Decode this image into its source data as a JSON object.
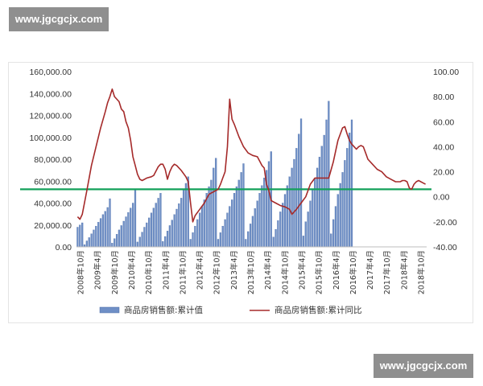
{
  "watermark": {
    "top_text": "www.jgcgcjx.com",
    "bottom_text": "www.jgcgcjx.com"
  },
  "chart_data": {
    "type": "bar+line",
    "title": "",
    "left_axis": {
      "ticks": [
        "160,000.00",
        "140,000.00",
        "120,000.00",
        "100,000.00",
        "80,000.00",
        "60,000.00",
        "40,000.00",
        "20,000.00",
        "0.00"
      ],
      "range": [
        0,
        160000
      ]
    },
    "right_axis": {
      "ticks": [
        "100.00",
        "80.00",
        "60.00",
        "40.00",
        "20.00",
        "0.00",
        "-20.00",
        "-40.00"
      ],
      "range": [
        -40,
        100
      ]
    },
    "x_ticks": [
      "2008年10月",
      "2009年4月",
      "2009年10月",
      "2010年4月",
      "2010年10月",
      "2011年4月",
      "2011年10月",
      "2012年4月",
      "2012年10月",
      "2013年4月",
      "2013年10月",
      "2014年4月",
      "2014年10月",
      "2015年4月",
      "2015年10月",
      "2016年4月",
      "2016年10月",
      "2017年4月",
      "2017年10月",
      "2018年4月",
      "2018年10月"
    ],
    "legend": {
      "placement": "bottom",
      "bar_label": "商品房销售额:累计值",
      "line_label": "商品房销售额:累计同比"
    },
    "reference_line": {
      "axis": "right",
      "value": 6,
      "color": "#13a05a"
    },
    "colors": {
      "bar": "#6f8fc6",
      "bar_edge": "#4b6ea8",
      "line": "#a52a2a"
    },
    "series": [
      {
        "name": "商品房销售额:累计值",
        "axis": "left",
        "kind": "bar",
        "values": [
          18000,
          20000,
          22000,
          2000,
          5500,
          8500,
          12000,
          15500,
          19000,
          22500,
          26000,
          29500,
          32500,
          36000,
          44000,
          3500,
          7500,
          11500,
          15500,
          19500,
          23500,
          27500,
          31500,
          35500,
          40000,
          52000,
          4500,
          9000,
          13500,
          18000,
          22000,
          26500,
          31000,
          35500,
          40000,
          44500,
          49000,
          5000,
          9500,
          14500,
          19500,
          24500,
          29500,
          34500,
          39500,
          44500,
          52000,
          58000,
          64000,
          7000,
          13000,
          19000,
          25000,
          31000,
          37000,
          43000,
          49000,
          55000,
          61000,
          72000,
          81000,
          7000,
          13000,
          19000,
          25000,
          31000,
          37000,
          43000,
          49000,
          55000,
          61000,
          68000,
          76000,
          7000,
          14000,
          21000,
          28000,
          35000,
          42000,
          49000,
          56000,
          63000,
          70000,
          78000,
          87000,
          9000,
          16000,
          24000,
          32000,
          40000,
          48000,
          56000,
          64000,
          72000,
          80000,
          90000,
          103000,
          117000,
          10000,
          23000,
          32000,
          42000,
          52000,
          62000,
          72000,
          82000,
          92000,
          102000,
          116000,
          133000,
          12000,
          25000,
          37000,
          48000,
          58000,
          68000,
          79000,
          90000,
          104000,
          116000
        ]
      },
      {
        "name": "商品房销售额:累计同比",
        "axis": "right",
        "kind": "line",
        "points": [
          [
            0,
            -16
          ],
          [
            1,
            -18
          ],
          [
            2,
            -14
          ],
          [
            4,
            5
          ],
          [
            6,
            25
          ],
          [
            8,
            40
          ],
          [
            10,
            55
          ],
          [
            12,
            68
          ],
          [
            13,
            75
          ],
          [
            14,
            80
          ],
          [
            15,
            86
          ],
          [
            16,
            80
          ],
          [
            18,
            76
          ],
          [
            19,
            70
          ],
          [
            20,
            68
          ],
          [
            21,
            60
          ],
          [
            22,
            55
          ],
          [
            23,
            45
          ],
          [
            24,
            32
          ],
          [
            25,
            25
          ],
          [
            26,
            18
          ],
          [
            27,
            14
          ],
          [
            28,
            13
          ],
          [
            30,
            15
          ],
          [
            32,
            16
          ],
          [
            33,
            17
          ],
          [
            35,
            24
          ],
          [
            36,
            26
          ],
          [
            37,
            26
          ],
          [
            38,
            22
          ],
          [
            39,
            14
          ],
          [
            40,
            20
          ],
          [
            41,
            24
          ],
          [
            42,
            26
          ],
          [
            43,
            25
          ],
          [
            44,
            23
          ],
          [
            45,
            21
          ],
          [
            47,
            16
          ],
          [
            48,
            12
          ],
          [
            49,
            -5
          ],
          [
            50,
            -20
          ],
          [
            51,
            -15
          ],
          [
            53,
            -10
          ],
          [
            55,
            -5
          ],
          [
            57,
            2
          ],
          [
            59,
            4
          ],
          [
            61,
            6
          ],
          [
            62,
            10
          ],
          [
            63,
            15
          ],
          [
            64,
            20
          ],
          [
            65,
            40
          ],
          [
            66,
            78
          ],
          [
            67,
            62
          ],
          [
            68,
            58
          ],
          [
            70,
            48
          ],
          [
            72,
            40
          ],
          [
            74,
            35
          ],
          [
            76,
            33
          ],
          [
            78,
            32
          ],
          [
            80,
            25
          ],
          [
            81,
            23
          ],
          [
            82,
            10
          ],
          [
            83,
            5
          ],
          [
            84,
            -3
          ],
          [
            86,
            -5
          ],
          [
            88,
            -7
          ],
          [
            90,
            -8
          ],
          [
            92,
            -10
          ],
          [
            93,
            -14
          ],
          [
            95,
            -10
          ],
          [
            97,
            -5
          ],
          [
            99,
            0
          ],
          [
            101,
            10
          ],
          [
            103,
            15
          ],
          [
            105,
            15
          ],
          [
            107,
            15
          ],
          [
            109,
            15
          ],
          [
            111,
            28
          ],
          [
            113,
            45
          ],
          [
            115,
            55
          ],
          [
            116,
            56
          ],
          [
            117,
            50
          ],
          [
            118,
            45
          ],
          [
            119,
            42
          ],
          [
            120,
            40
          ],
          [
            121,
            38
          ],
          [
            122,
            40
          ],
          [
            123,
            41
          ],
          [
            124,
            40
          ],
          [
            125,
            35
          ],
          [
            126,
            30
          ],
          [
            128,
            26
          ],
          [
            130,
            22
          ],
          [
            132,
            20
          ],
          [
            134,
            16
          ],
          [
            136,
            14
          ],
          [
            138,
            12
          ],
          [
            140,
            12
          ],
          [
            141,
            13
          ],
          [
            142,
            13
          ],
          [
            143,
            12
          ],
          [
            144,
            7
          ],
          [
            145,
            6
          ],
          [
            146,
            10
          ],
          [
            147,
            12
          ],
          [
            148,
            13
          ],
          [
            150,
            11
          ],
          [
            151,
            10
          ]
        ]
      }
    ],
    "bar_slots": 152,
    "grid": false
  }
}
